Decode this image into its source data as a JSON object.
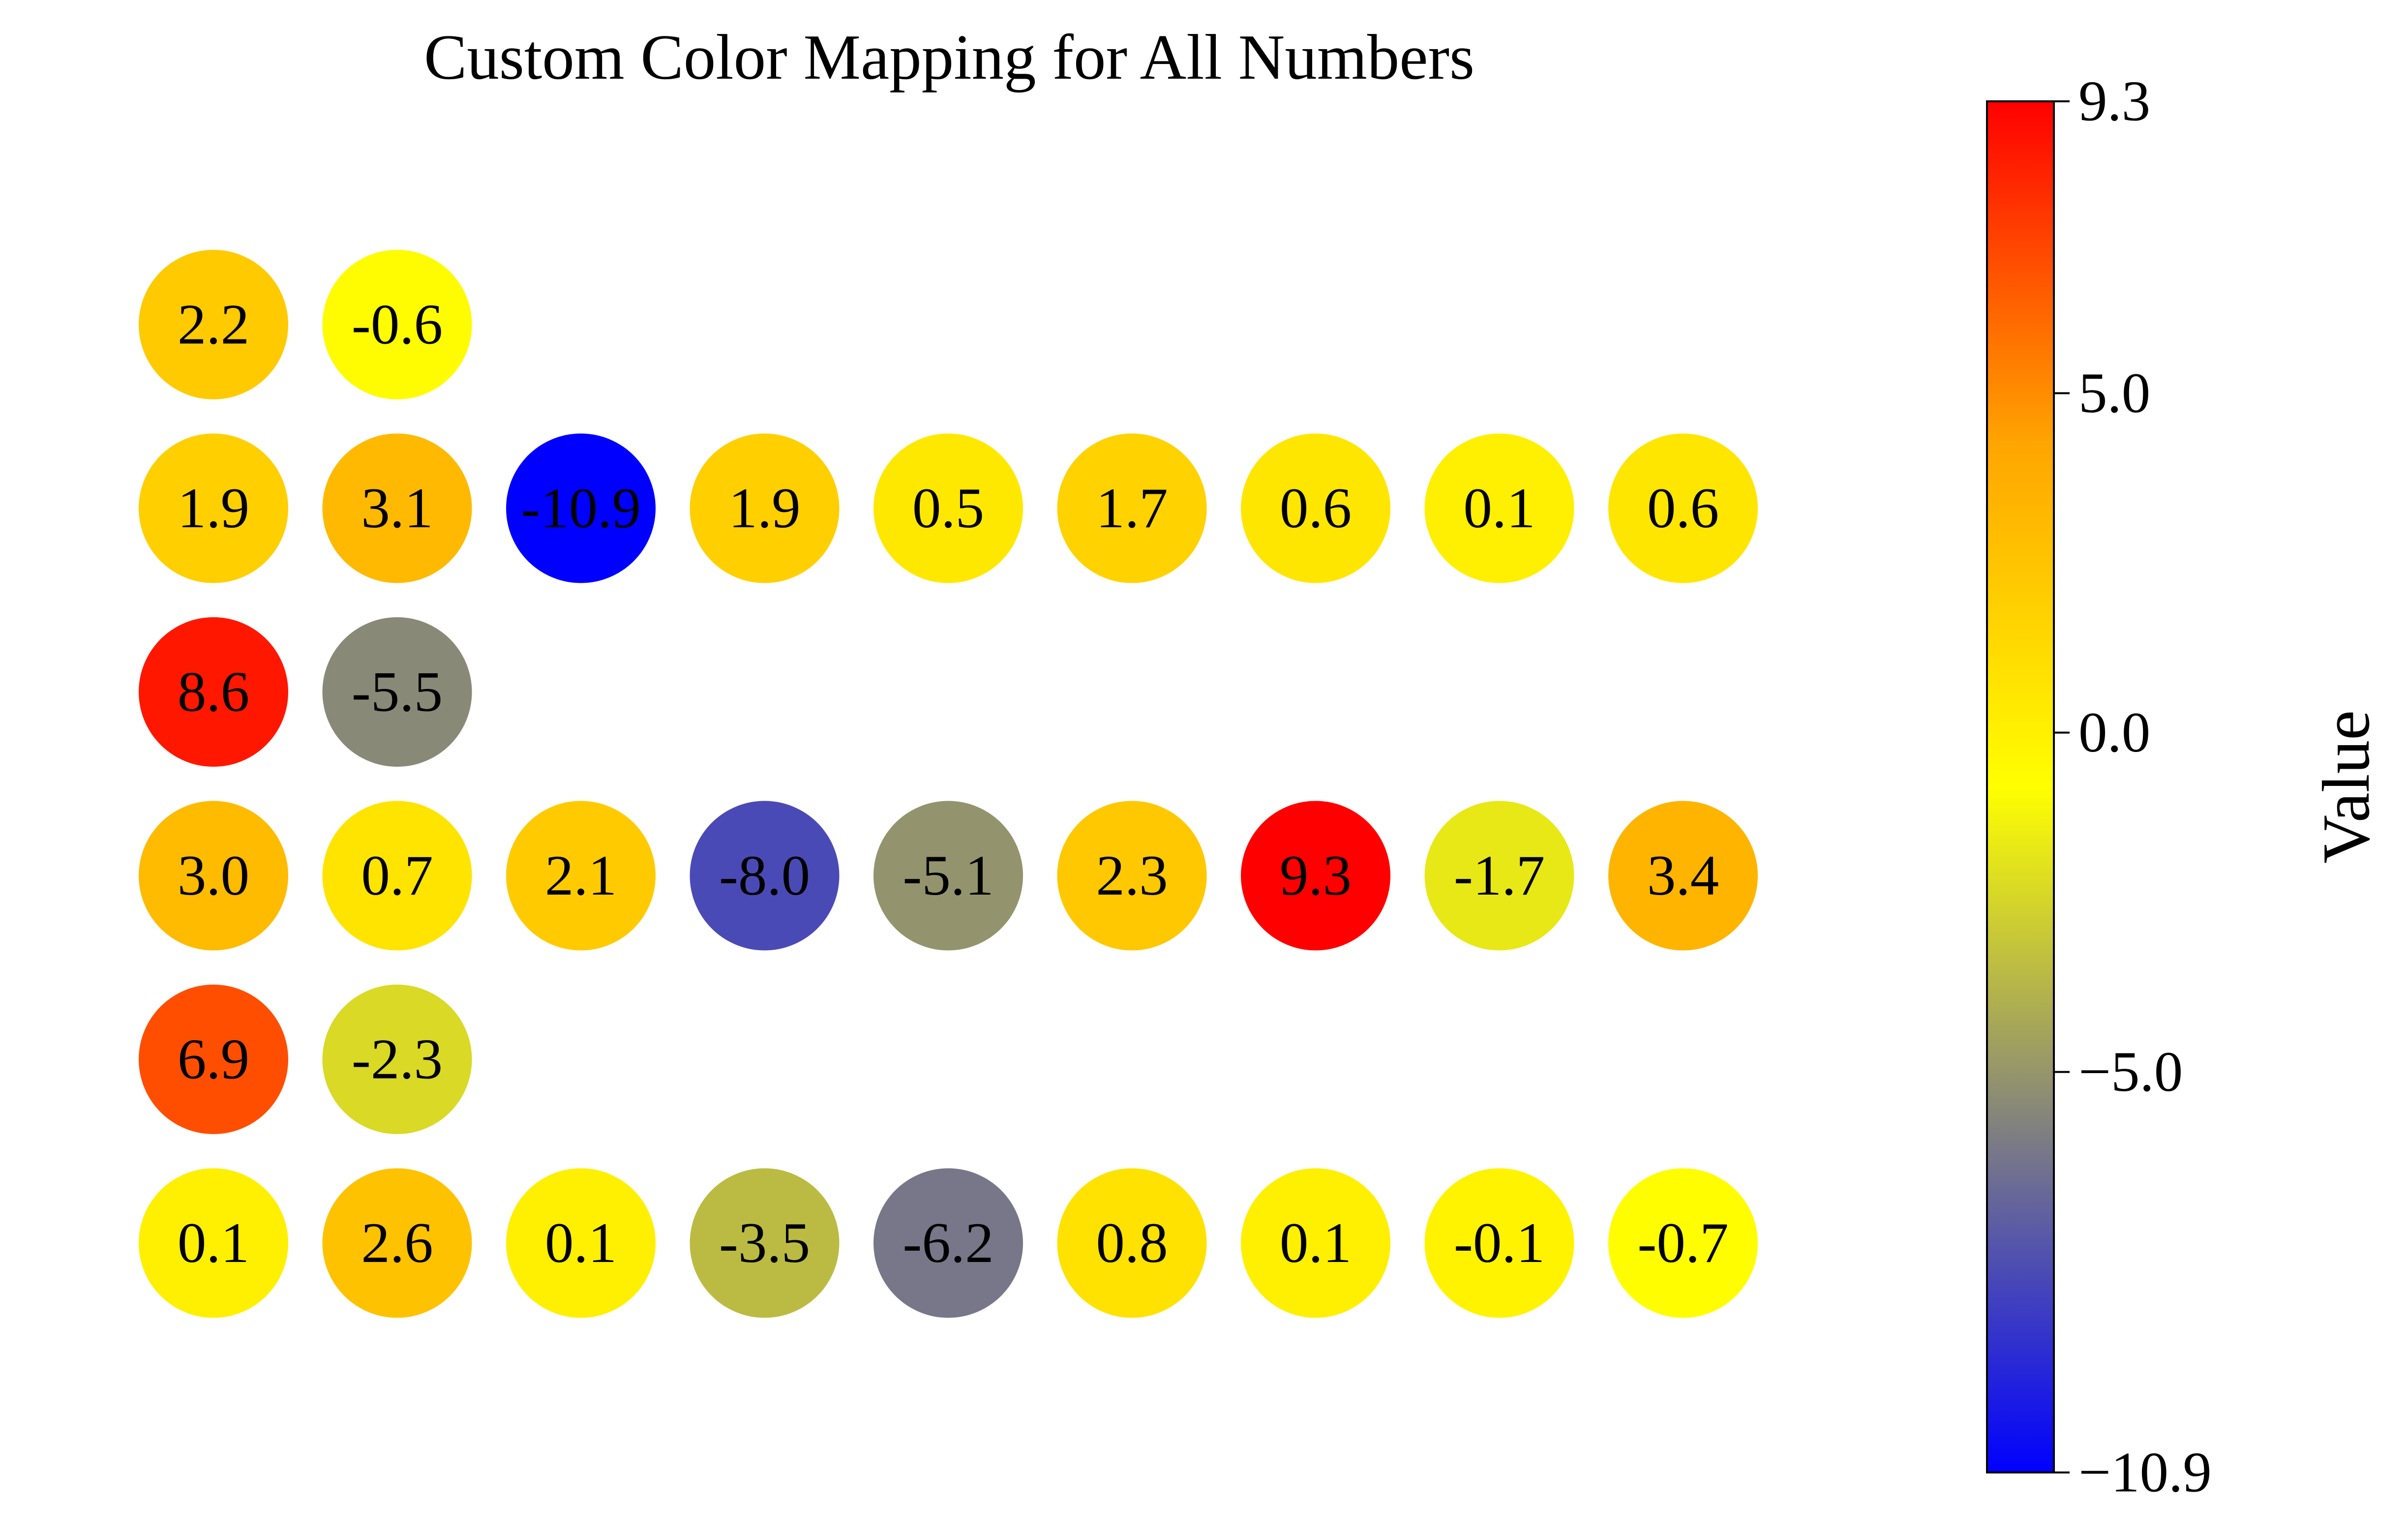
{
  "chart_data": {
    "type": "bubble-grid",
    "title": "Custom Color Mapping for All Numbers",
    "rows": [
      [
        2.2,
        -0.6
      ],
      [
        1.9,
        3.1,
        -10.9,
        1.9,
        0.5,
        1.7,
        0.6,
        0.1,
        0.6
      ],
      [
        8.6,
        -5.5
      ],
      [
        3.0,
        0.7,
        2.1,
        -8.0,
        -5.1,
        2.3,
        9.3,
        -1.7,
        3.4
      ],
      [
        6.9,
        -2.3
      ],
      [
        0.1,
        2.6,
        0.1,
        -3.5,
        -6.2,
        0.8,
        0.1,
        -0.1,
        -0.7
      ]
    ],
    "labels": [
      [
        "2.2",
        "-0.6"
      ],
      [
        "1.9",
        "3.1",
        "-10.9",
        "1.9",
        "0.5",
        "1.7",
        "0.6",
        "0.1",
        "0.6"
      ],
      [
        "8.6",
        "-5.5"
      ],
      [
        "3.0",
        "0.7",
        "2.1",
        "-8.0",
        "-5.1",
        "2.3",
        "9.3",
        "-1.7",
        "3.4"
      ],
      [
        "6.9",
        "-2.3"
      ],
      [
        "0.1",
        "2.6",
        "0.1",
        "-3.5",
        "-6.2",
        "0.8",
        "0.1",
        "-0.1",
        "-0.7"
      ]
    ],
    "colorbar": {
      "label": "Value",
      "vmin": -10.9,
      "vmax": 9.3,
      "ticks": [
        {
          "value": 9.3,
          "label": "9.3"
        },
        {
          "value": 5.0,
          "label": "5.0"
        },
        {
          "value": 0.0,
          "label": "0.0"
        },
        {
          "value": -5.0,
          "label": "−5.0"
        },
        {
          "value": -10.9,
          "label": "−10.9"
        }
      ],
      "colormap": [
        "#0000ff",
        "#808080",
        "#ffff00",
        "#ffa500",
        "#ff0000"
      ]
    },
    "grid": false,
    "legend": "none"
  }
}
